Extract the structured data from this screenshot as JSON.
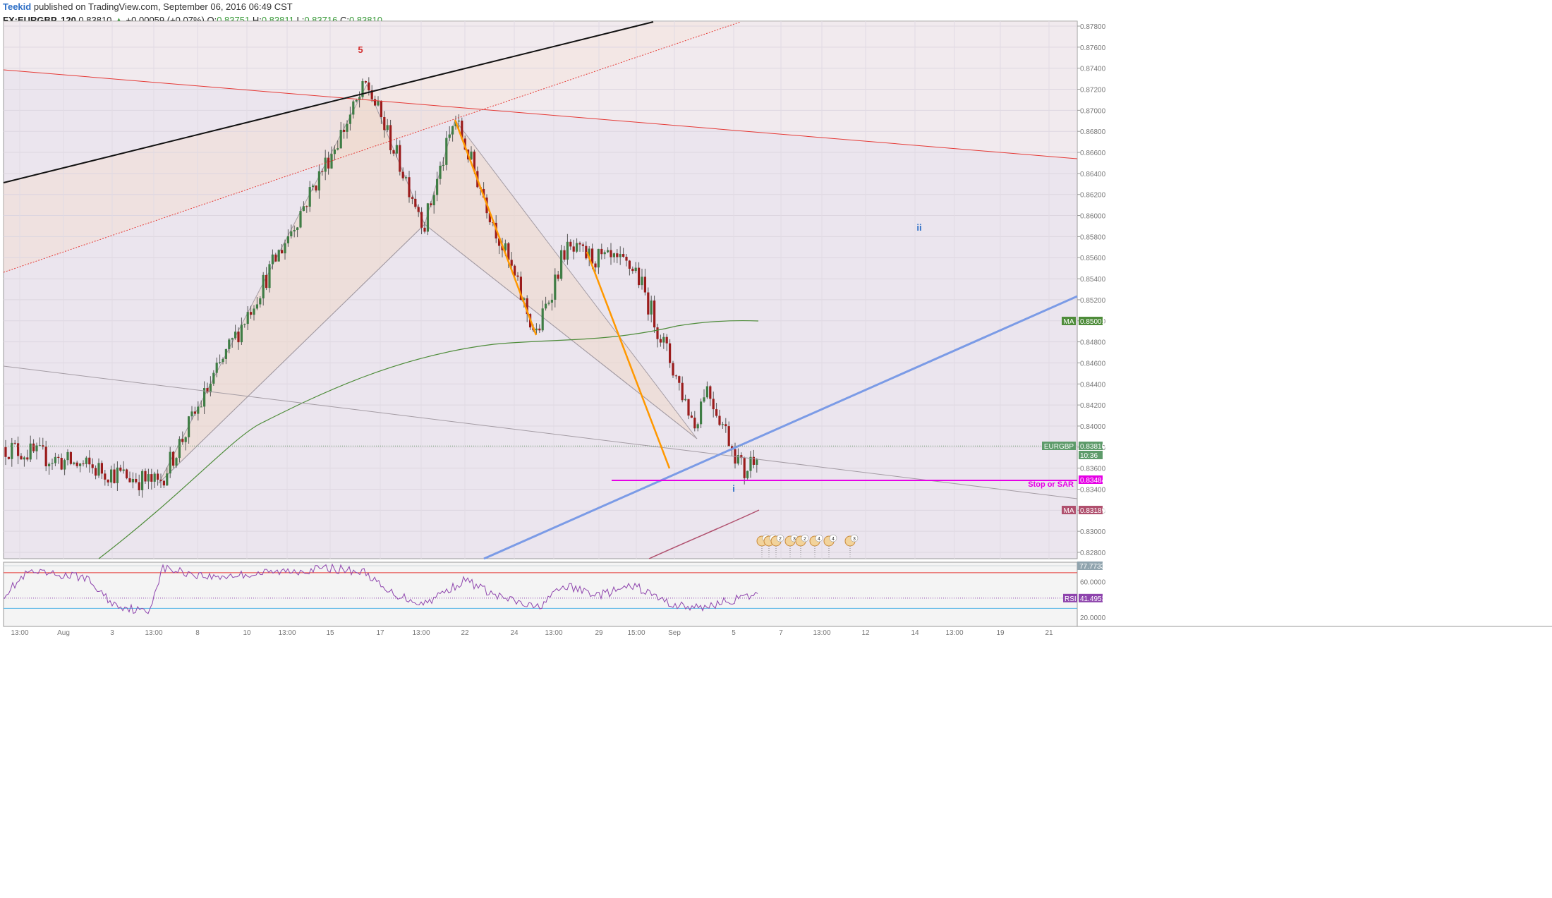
{
  "header": {
    "author": "Teekid",
    "published": "published on TradingView.com, September 06, 2016 06:49 CST",
    "symbol": "FX:EURGBP, 120",
    "last": "0.83810",
    "change_arrow": "▲",
    "change": "+0.00059 (+0.07%)",
    "o_label": "O:",
    "o": "0.83751",
    "h_label": "H:",
    "h": "0.83811",
    "l_label": "L:",
    "l": "0.83716",
    "c_label": "C:",
    "c": "0.83810"
  },
  "colors": {
    "background": "#ffffff",
    "pane_bg": "#ebe5ee",
    "bull": "#3f7d45",
    "bear": "#9b1c1c",
    "ma_green": "#4e8c3a",
    "ma_pink": "#b0506e",
    "rsi": "#8e44ad",
    "orange": "#ff9800",
    "blue_trend": "#7b9be6",
    "magenta": "#e600e6",
    "red_line": "#e53935",
    "black_line": "#111111"
  },
  "chart_data": {
    "type": "candlestick",
    "symbol": "FX:EURGBP",
    "interval": "120",
    "ylim": [
      0.8258,
      0.8783
    ],
    "y_ticks": [
      "0.87800",
      "0.87600",
      "0.87400",
      "0.87200",
      "0.87000",
      "0.86800",
      "0.86600",
      "0.86400",
      "0.86200",
      "0.86000",
      "0.85800",
      "0.85600",
      "0.85400",
      "0.85200",
      "0.85000",
      "0.84800",
      "0.84600",
      "0.84400",
      "0.84200",
      "0.84000",
      "0.83800",
      "0.83600",
      "0.83400",
      "0.83200",
      "0.83000",
      "0.82800"
    ],
    "x_ticks": [
      "13:00",
      "Aug",
      "3",
      "13:00",
      "8",
      "10",
      "13:00",
      "15",
      "17",
      "13:00",
      "22",
      "24",
      "13:00",
      "29",
      "15:00",
      "Sep",
      "5",
      "7",
      "13:00",
      "12",
      "14",
      "13:00",
      "19",
      "21"
    ],
    "key_points": [
      {
        "label": "start",
        "price": 0.838
      },
      {
        "label": "low Aug 4",
        "price": 0.8345
      },
      {
        "label": "high Aug 16",
        "price": 0.8725
      },
      {
        "label": "low Aug 19",
        "price": 0.8592
      },
      {
        "label": "high Aug 22",
        "price": 0.8692
      },
      {
        "label": "low Aug 25",
        "price": 0.8485
      },
      {
        "label": "high Aug 26",
        "price": 0.8567
      },
      {
        "label": "high Sep 1",
        "price": 0.855
      },
      {
        "label": "low Sep 2",
        "price": 0.84
      },
      {
        "label": "high Sep 2",
        "price": 0.844
      },
      {
        "label": "low Sep 5",
        "price": 0.8355
      },
      {
        "label": "last",
        "price": 0.8381
      }
    ],
    "price_tags": [
      {
        "label": "MA",
        "value": "0.85001"
      },
      {
        "label": "EURGBP",
        "value": "0.83810"
      },
      {
        "label": "",
        "value": "10:36"
      },
      {
        "label": "",
        "value": "0.83484"
      },
      {
        "label": "MA",
        "value": "0.83189"
      }
    ],
    "annotations": [
      {
        "text": "5"
      },
      {
        "text": "ii"
      },
      {
        "text": "i"
      },
      {
        "text": "Stop or SAR",
        "price": 0.83484
      }
    ],
    "rsi": {
      "name": "RSI",
      "value": "41.4953",
      "upper_tag": "77.7733",
      "ticks": [
        "60.0000",
        "20.0000"
      ],
      "upper_band": 70,
      "lower_band": 30
    },
    "event_badges": [
      "5",
      "2",
      "2",
      "3",
      "2",
      "4",
      "4",
      "3"
    ]
  }
}
